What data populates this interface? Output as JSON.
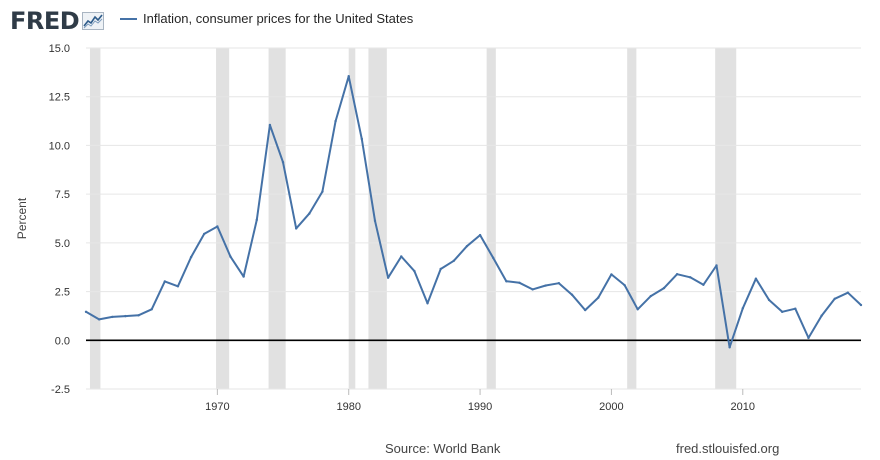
{
  "header": {
    "logo_text": "FRED",
    "logo_icon": "trend-line-icon",
    "legend_label": "Inflation, consumer prices for the United States"
  },
  "footer": {
    "source": "Source: World Bank",
    "site": "fred.stlouisfed.org"
  },
  "colors": {
    "series": "#4572a7",
    "recession": "#e1e1e1",
    "grid": "#e6e6e6",
    "zero_line": "#000000",
    "text": "#262626"
  },
  "chart_data": {
    "type": "line",
    "title": "",
    "xlabel": "",
    "ylabel": "Percent",
    "xlim": [
      1960,
      2019
    ],
    "ylim": [
      -2.5,
      15.0
    ],
    "grid": true,
    "legend": "top-left",
    "y_ticks": [
      -2.5,
      0.0,
      2.5,
      5.0,
      7.5,
      10.0,
      12.5,
      15.0
    ],
    "y_tick_labels": [
      "-2.5",
      "0.0",
      "2.5",
      "5.0",
      "7.5",
      "10.0",
      "12.5",
      "15.0"
    ],
    "x_ticks": [
      1970,
      1980,
      1990,
      2000,
      2010
    ],
    "x_tick_labels": [
      "1970",
      "1980",
      "1990",
      "2000",
      "2010"
    ],
    "recession_bands": [
      [
        1960.3,
        1961.1
      ],
      [
        1969.9,
        1970.9
      ],
      [
        1973.9,
        1975.2
      ],
      [
        1980.0,
        1980.5
      ],
      [
        1981.5,
        1982.9
      ],
      [
        1990.5,
        1991.2
      ],
      [
        2001.2,
        2001.9
      ],
      [
        2007.9,
        2009.5
      ]
    ],
    "series": [
      {
        "name": "Inflation, consumer prices for the United States",
        "x": [
          1960,
          1961,
          1962,
          1963,
          1964,
          1965,
          1966,
          1967,
          1968,
          1969,
          1970,
          1971,
          1972,
          1973,
          1974,
          1975,
          1976,
          1977,
          1978,
          1979,
          1980,
          1981,
          1982,
          1983,
          1984,
          1985,
          1986,
          1987,
          1988,
          1989,
          1990,
          1991,
          1992,
          1993,
          1994,
          1995,
          1996,
          1997,
          1998,
          1999,
          2000,
          2001,
          2002,
          2003,
          2004,
          2005,
          2006,
          2007,
          2008,
          2009,
          2010,
          2011,
          2012,
          2013,
          2014,
          2015,
          2016,
          2017,
          2018,
          2019
        ],
        "values": [
          1.46,
          1.07,
          1.2,
          1.24,
          1.28,
          1.59,
          3.02,
          2.77,
          4.27,
          5.46,
          5.84,
          4.29,
          3.27,
          6.18,
          11.05,
          9.14,
          5.74,
          6.5,
          7.63,
          11.25,
          13.55,
          10.33,
          6.13,
          3.21,
          4.3,
          3.55,
          1.9,
          3.66,
          4.08,
          4.83,
          5.4,
          4.23,
          3.03,
          2.95,
          2.61,
          2.81,
          2.93,
          2.34,
          1.55,
          2.19,
          3.38,
          2.83,
          1.59,
          2.27,
          2.68,
          3.39,
          3.23,
          2.85,
          3.84,
          -0.36,
          1.64,
          3.16,
          2.07,
          1.46,
          1.62,
          0.12,
          1.26,
          2.13,
          2.44,
          1.81
        ]
      }
    ]
  }
}
